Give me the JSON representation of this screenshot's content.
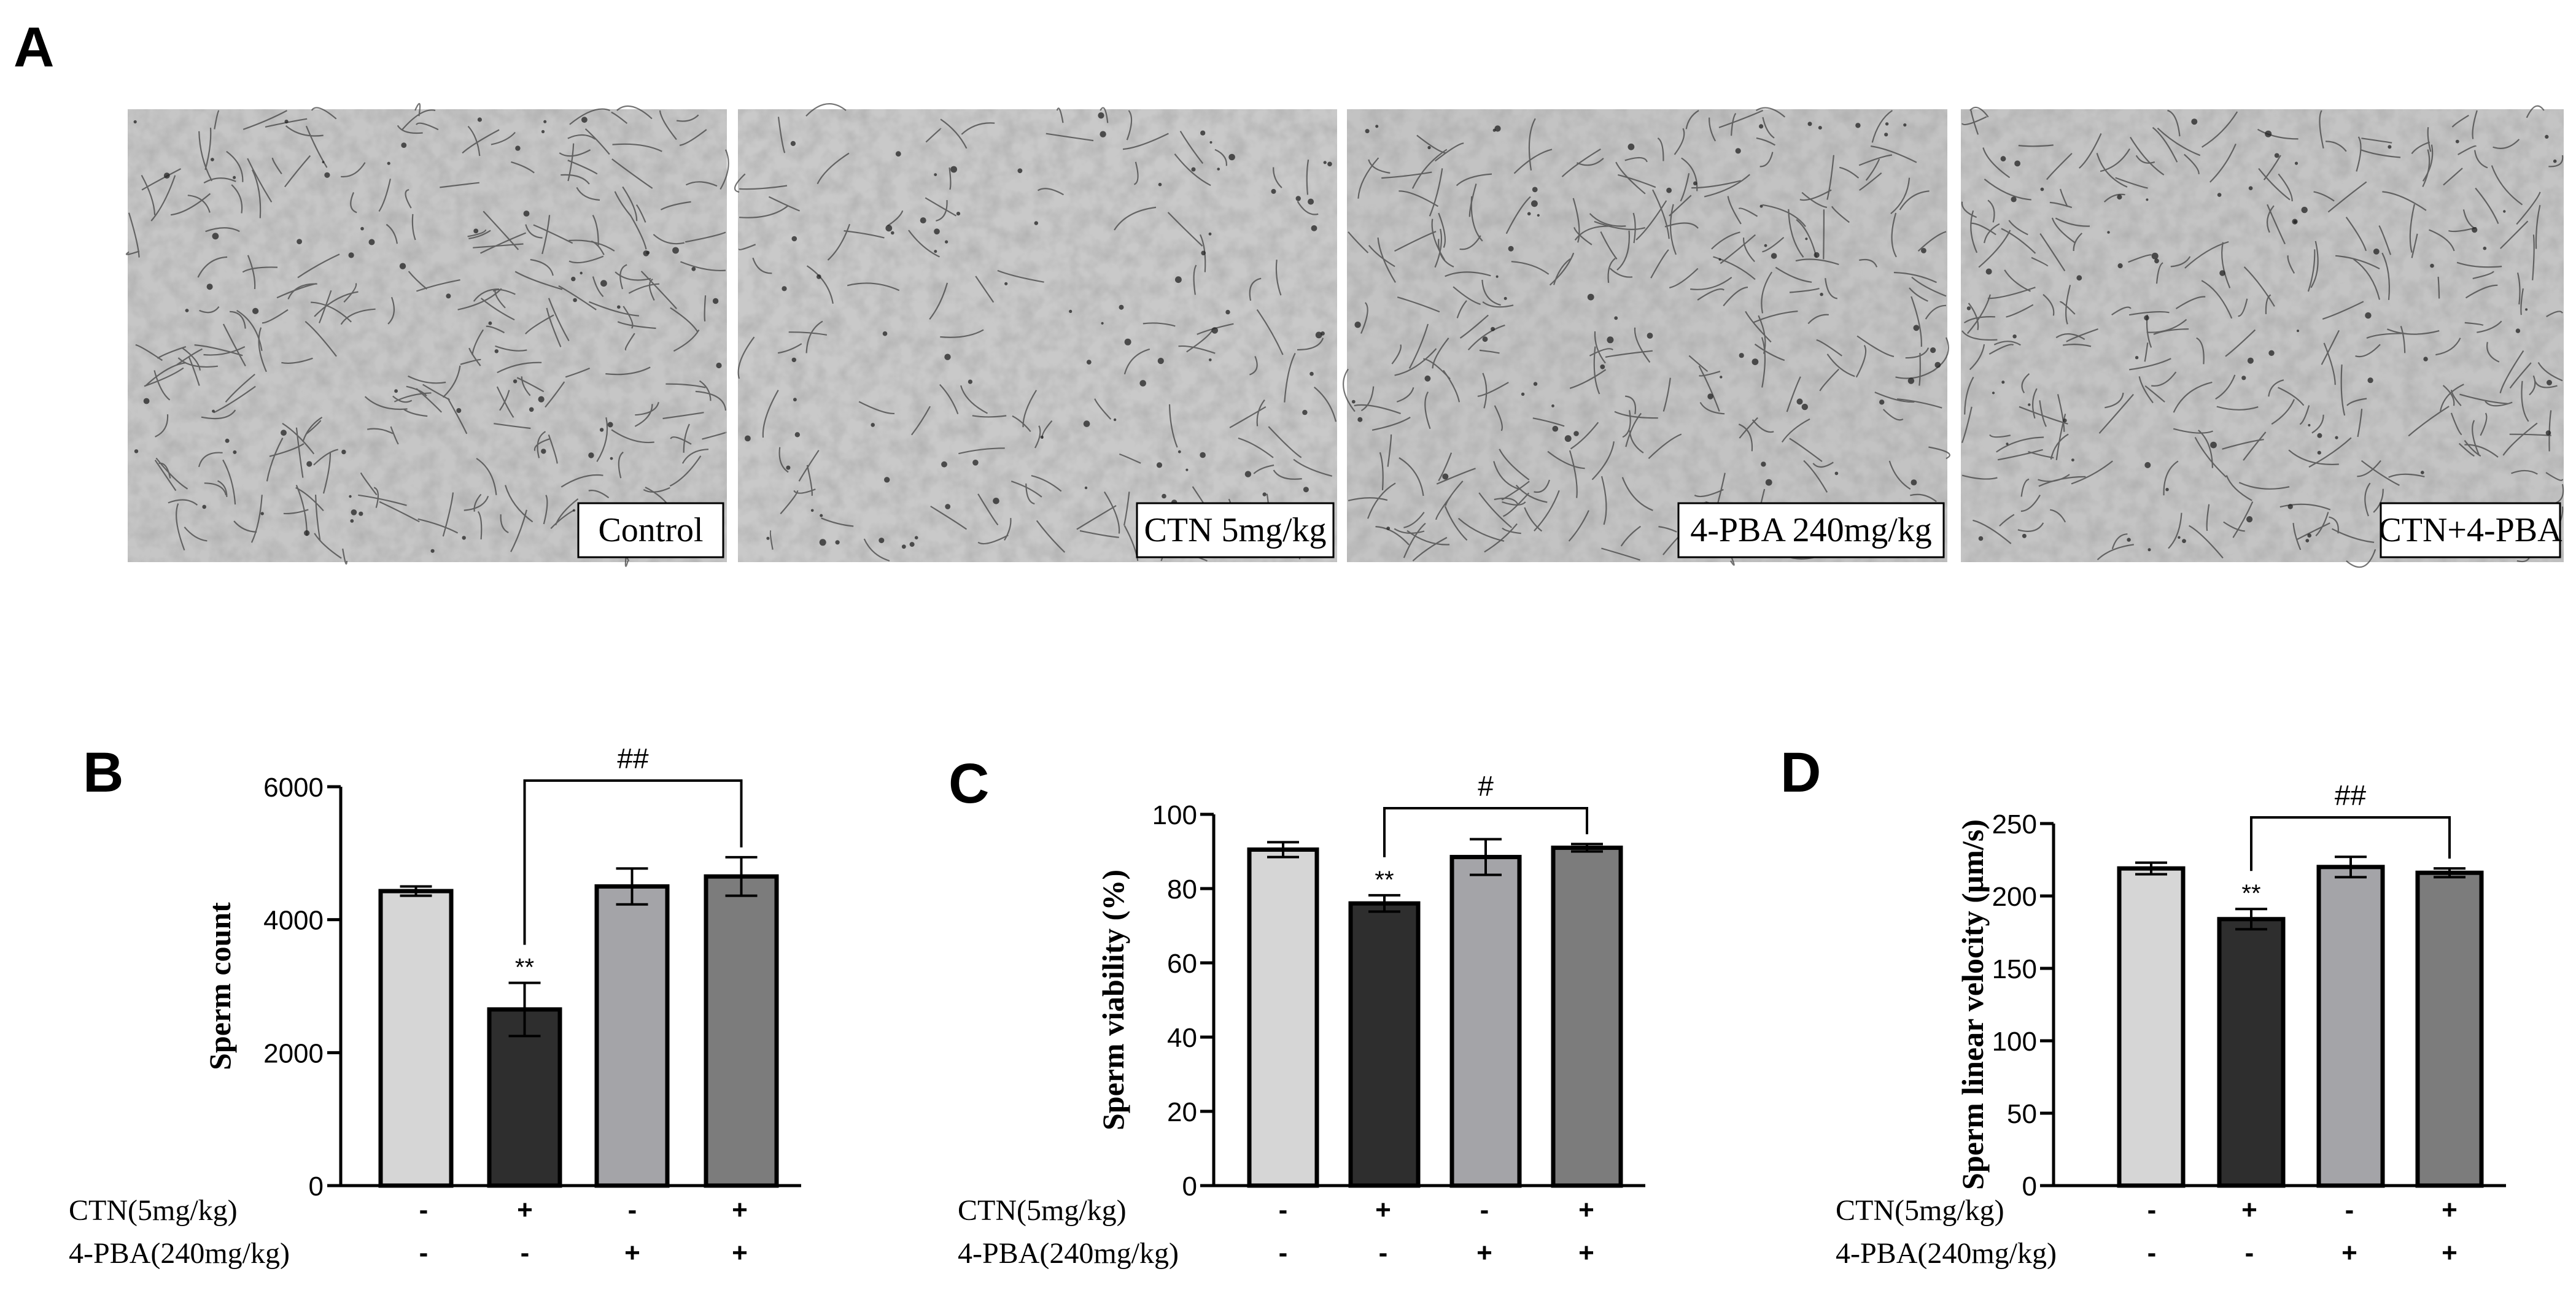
{
  "panel_a": {
    "letter": "A",
    "images": [
      {
        "label": "Control",
        "tone": "#c6c6c6"
      },
      {
        "label": "CTN 5mg/kg",
        "tone": "#c9c9c9"
      },
      {
        "label": "4-PBA 240mg/kg",
        "tone": "#c3c3c3"
      },
      {
        "label": "CTN+4-PBA",
        "tone": "#c4c4c4"
      }
    ]
  },
  "conditions": {
    "row1_label": "CTN(5mg/kg)",
    "row2_label": "4-PBA(240mg/kg)",
    "row1_signs": [
      "-",
      "+",
      "-",
      "+"
    ],
    "row2_signs": [
      "-",
      "-",
      "+",
      "+"
    ]
  },
  "colors": {
    "bars": [
      "#d6d6d6",
      "#2e2e2e",
      "#a4a4a8",
      "#7c7c7c"
    ],
    "outline": "#000000"
  },
  "chart_data": [
    {
      "panel": "B",
      "type": "bar",
      "ylabel": "Sperm count",
      "ylim": [
        0,
        6000
      ],
      "yticks": [
        0,
        2000,
        4000,
        6000
      ],
      "values": [
        4430,
        2650,
        4500,
        4650
      ],
      "errors": [
        70,
        400,
        270,
        290
      ],
      "star_label": "**",
      "star_index": 1,
      "bracket_label": "##",
      "bracket_from": 1,
      "bracket_to": 3
    },
    {
      "panel": "C",
      "type": "bar",
      "ylabel": "Sperm viability (%)",
      "ylim": [
        0,
        100
      ],
      "yticks": [
        0,
        20,
        40,
        60,
        80,
        100
      ],
      "values": [
        90.5,
        76,
        88.5,
        91
      ],
      "errors": [
        2,
        2.2,
        4.8,
        1
      ],
      "star_label": "**",
      "star_index": 1,
      "bracket_label": "#",
      "bracket_from": 1,
      "bracket_to": 3
    },
    {
      "panel": "D",
      "type": "bar",
      "ylabel": "Sperm linear velocity (μm/s)",
      "ylim": [
        0,
        250
      ],
      "yticks": [
        0,
        50,
        100,
        150,
        200,
        250
      ],
      "values": [
        219,
        184,
        220,
        216
      ],
      "errors": [
        4,
        7,
        7,
        3
      ],
      "star_label": "**",
      "star_index": 1,
      "bracket_label": "##",
      "bracket_from": 1,
      "bracket_to": 3
    }
  ]
}
